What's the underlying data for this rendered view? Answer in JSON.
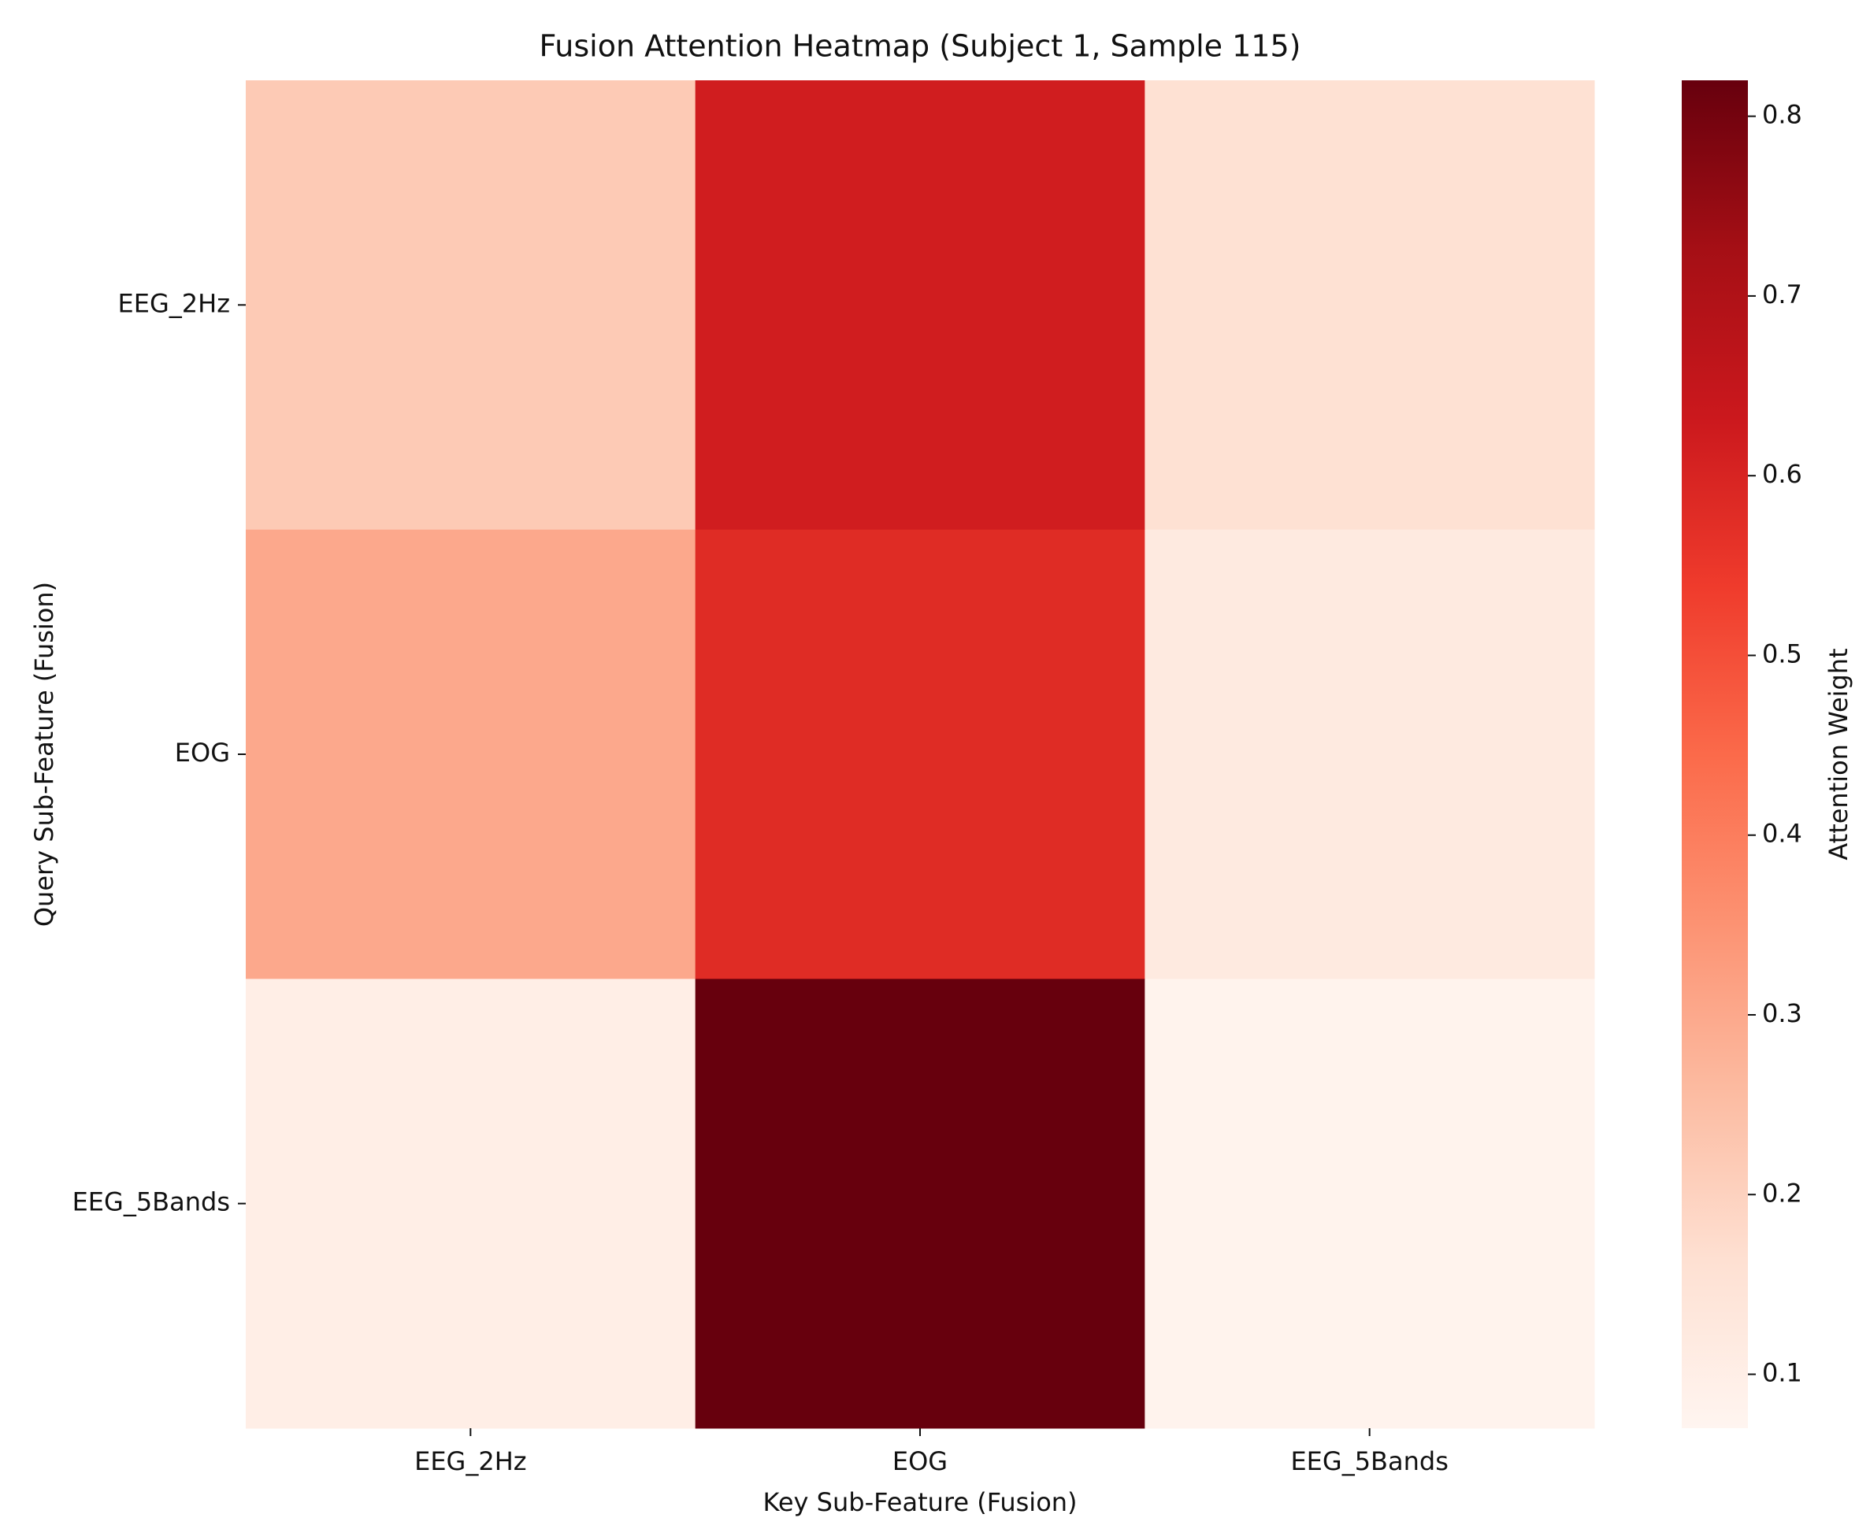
{
  "chart_data": {
    "type": "heatmap",
    "title": "Fusion Attention Heatmap (Subject 1, Sample 115)",
    "x_label": "Key Sub-Feature (Fusion)",
    "y_label": "Query Sub-Feature (Fusion)",
    "x_categories": [
      "EEG_2Hz",
      "EOG",
      "EEG_5Bands"
    ],
    "y_categories": [
      "EEG_2Hz",
      "EOG",
      "EEG_5Bands"
    ],
    "values": [
      [
        0.22,
        0.62,
        0.16
      ],
      [
        0.3,
        0.58,
        0.12
      ],
      [
        0.1,
        0.82,
        0.08
      ]
    ],
    "colormap": "Reds",
    "colorbar": {
      "label": "Attention Weight",
      "lim": [
        0.07,
        0.82
      ],
      "ticks": [
        0.1,
        0.2,
        0.3,
        0.4,
        0.5,
        0.6,
        0.7,
        0.8
      ]
    }
  }
}
